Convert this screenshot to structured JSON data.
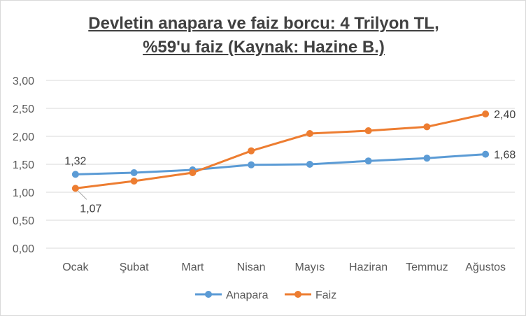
{
  "chart_data": {
    "type": "line",
    "title_lines": [
      "Devletin anapara ve faiz borcu: 4 Trilyon TL,",
      "%59'u faiz (Kaynak: Hazine B.)"
    ],
    "categories": [
      "Ocak",
      "Şubat",
      "Mart",
      "Nisan",
      "Mayıs",
      "Haziran",
      "Temmuz",
      "Ağustos"
    ],
    "ylim": [
      0,
      3
    ],
    "yticks": [
      "0,00",
      "0,50",
      "1,00",
      "1,50",
      "2,00",
      "2,50",
      "3,00"
    ],
    "ytick_values": [
      0,
      0.5,
      1,
      1.5,
      2,
      2.5,
      3
    ],
    "grid": true,
    "legend_position": "bottom",
    "series": [
      {
        "name": "Anapara",
        "color": "#5b9bd5",
        "values": [
          1.32,
          1.35,
          1.4,
          1.49,
          1.5,
          1.56,
          1.61,
          1.68
        ],
        "labels": [
          {
            "index": 0,
            "text": "1,32"
          },
          {
            "index": 7,
            "text": "1,68"
          }
        ]
      },
      {
        "name": "Faiz",
        "color": "#ed7d31",
        "values": [
          1.07,
          1.2,
          1.35,
          1.74,
          2.05,
          2.1,
          2.17,
          2.4
        ],
        "labels": [
          {
            "index": 0,
            "text": "1,07"
          },
          {
            "index": 7,
            "text": "2,40"
          }
        ]
      }
    ]
  }
}
